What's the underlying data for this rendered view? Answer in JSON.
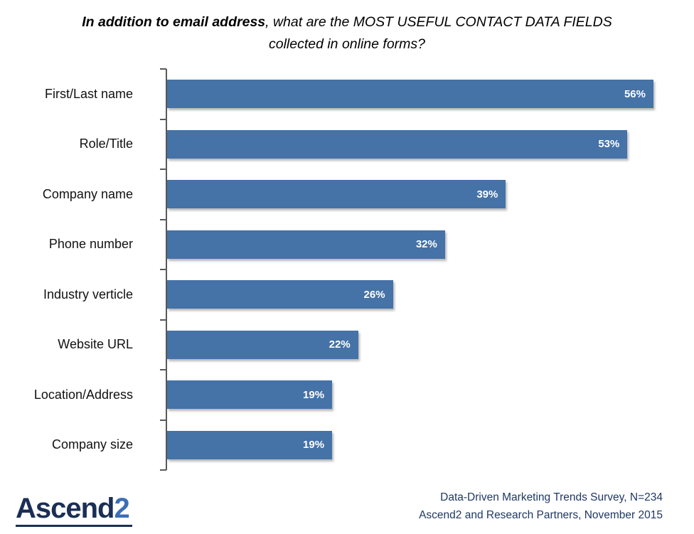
{
  "title": {
    "bold": "In addition to email address",
    "rest": ", what are the MOST USEFUL CONTACT DATA FIELDS collected in online forms?"
  },
  "chart_data": {
    "type": "bar",
    "orientation": "horizontal",
    "title": "In addition to email address, what are the MOST USEFUL CONTACT DATA FIELDS collected in online forms?",
    "categories": [
      "First/Last name",
      "Role/Title",
      "Company name",
      "Phone number",
      "Industry verticle",
      "Website URL",
      "Location/Address",
      "Company size"
    ],
    "values": [
      56,
      53,
      39,
      32,
      26,
      22,
      19,
      19
    ],
    "value_labels": [
      "56%",
      "53%",
      "39%",
      "32%",
      "26%",
      "22%",
      "19%",
      "19%"
    ],
    "axis_max": 56,
    "xlim": [
      0,
      56
    ],
    "grid": "off",
    "legend": "none",
    "bar_color": "#4572A7",
    "value_label_color": "#FFFFFF"
  },
  "footer": {
    "line1": "Data-Driven Marketing Trends Survey, N=234",
    "line2": "Ascend2 and Research Partners, November 2015"
  },
  "logo": {
    "main": "Ascend",
    "accent": "2"
  },
  "colors": {
    "source_text": "#1F3864",
    "logo_main": "#1B2F55",
    "logo_accent": "#3D6EB5",
    "axis": "#595959"
  }
}
